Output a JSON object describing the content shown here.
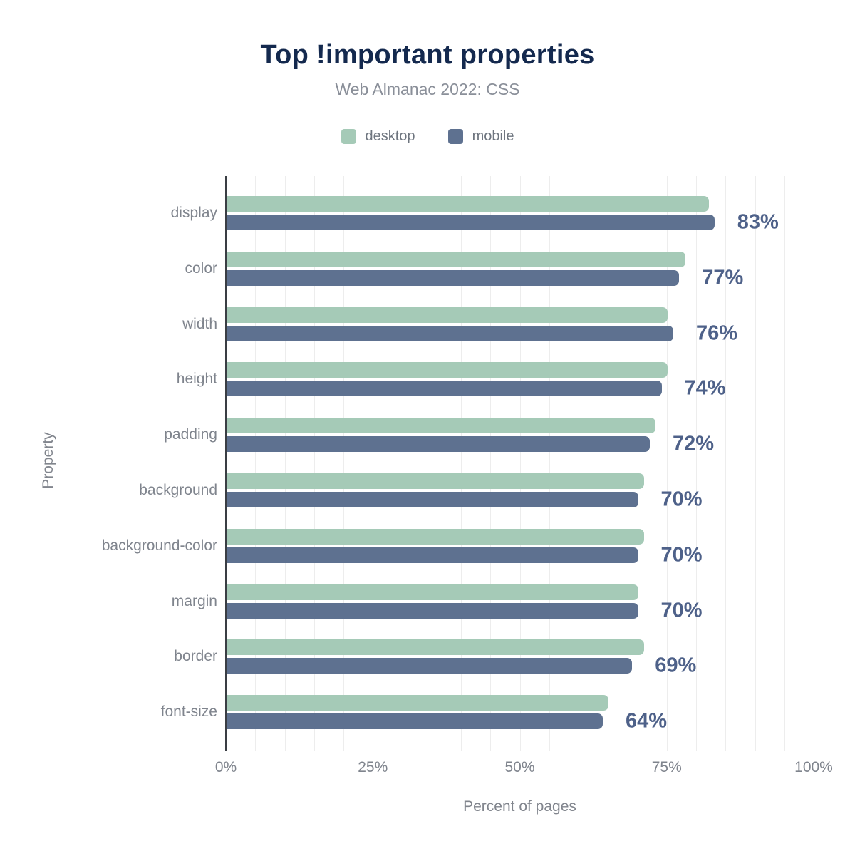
{
  "title": "Top !important properties",
  "subtitle": "Web Almanac 2022: CSS",
  "chart_data": {
    "type": "bar",
    "orientation": "horizontal",
    "title": "Top !important properties",
    "subtitle": "Web Almanac 2022: CSS",
    "categories": [
      "display",
      "color",
      "width",
      "height",
      "padding",
      "background",
      "background-color",
      "margin",
      "border",
      "font-size"
    ],
    "series": [
      {
        "name": "desktop",
        "color": "#a5cab7",
        "values": [
          82,
          78,
          75,
          75,
          73,
          71,
          71,
          70,
          71,
          65
        ]
      },
      {
        "name": "mobile",
        "color": "#5e7190",
        "values": [
          83,
          77,
          76,
          74,
          72,
          70,
          70,
          70,
          69,
          64
        ]
      }
    ],
    "value_labels": [
      "83%",
      "77%",
      "76%",
      "74%",
      "72%",
      "70%",
      "70%",
      "70%",
      "69%",
      "64%"
    ],
    "value_labels_series": "mobile",
    "xlabel": "Percent of pages",
    "ylabel": "Property",
    "xlim": [
      0,
      100
    ],
    "x_ticks": [
      {
        "value": 0,
        "label": "0%"
      },
      {
        "value": 25,
        "label": "25%"
      },
      {
        "value": 50,
        "label": "50%"
      },
      {
        "value": 75,
        "label": "75%"
      },
      {
        "value": 100,
        "label": "100%"
      }
    ],
    "grid": {
      "vertical_minor_step_percent": 5,
      "color": "#ededed"
    },
    "legend_position": "top"
  },
  "colors": {
    "background": "#ffffff",
    "title": "#14294e",
    "subtitle": "#8a8f99",
    "legend_label": "#6e757f",
    "category_label": "#7f848d",
    "tick_label": "#7f848d",
    "value_label": "#4e6189",
    "axis_line": "#3a3e44",
    "gridline": "#ededed",
    "desktop_bar": "#a5cab7",
    "mobile_bar": "#5e7190"
  }
}
